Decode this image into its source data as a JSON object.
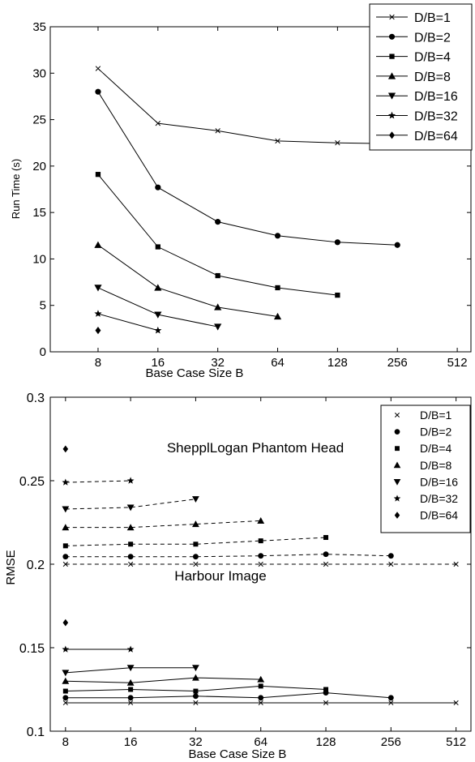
{
  "chart_data": [
    {
      "type": "line",
      "xscale": "log2",
      "xlabel": "Base Case Size B",
      "ylabel": "Run Time (s)",
      "xticks": [
        8,
        16,
        32,
        64,
        128,
        256,
        512
      ],
      "xtick_labels": [
        "8",
        "16",
        "32",
        "64",
        "128",
        "256",
        "512"
      ],
      "yticks": [
        0,
        5,
        10,
        15,
        20,
        25,
        30,
        35
      ],
      "ytick_labels": [
        "0",
        "5",
        "10",
        "15",
        "20",
        "25",
        "30",
        "35"
      ],
      "ylim": [
        0,
        35
      ],
      "xlim": [
        4.6,
        600
      ],
      "legend_position": "top-right",
      "series": [
        {
          "name": "D/B=1",
          "marker": "x",
          "x": [
            8,
            16,
            32,
            64,
            128,
            256,
            512
          ],
          "y": [
            30.5,
            24.6,
            23.8,
            22.7,
            22.5,
            22.4,
            22.3
          ]
        },
        {
          "name": "D/B=2",
          "marker": "circle",
          "x": [
            8,
            16,
            32,
            64,
            128,
            256
          ],
          "y": [
            28.0,
            17.7,
            14.0,
            12.5,
            11.8,
            11.5
          ]
        },
        {
          "name": "D/B=4",
          "marker": "square",
          "x": [
            8,
            16,
            32,
            64,
            128
          ],
          "y": [
            19.1,
            11.3,
            8.2,
            6.9,
            6.1
          ]
        },
        {
          "name": "D/B=8",
          "marker": "triangle-up",
          "x": [
            8,
            16,
            32,
            64
          ],
          "y": [
            11.5,
            6.9,
            4.8,
            3.8
          ]
        },
        {
          "name": "D/B=16",
          "marker": "triangle-down",
          "x": [
            8,
            16,
            32
          ],
          "y": [
            6.9,
            4.0,
            2.7
          ]
        },
        {
          "name": "D/B=32",
          "marker": "star",
          "x": [
            8,
            16
          ],
          "y": [
            4.1,
            2.3
          ]
        },
        {
          "name": "D/B=64",
          "marker": "diamond",
          "x": [
            8
          ],
          "y": [
            2.3
          ]
        }
      ]
    },
    {
      "type": "line",
      "xscale": "log2",
      "xlabel": "Base Case Size B",
      "ylabel": "RMSE",
      "xticks": [
        8,
        16,
        32,
        64,
        128,
        256,
        512
      ],
      "xtick_labels": [
        "8",
        "16",
        "32",
        "64",
        "128",
        "256",
        "512"
      ],
      "yticks": [
        0.1,
        0.15,
        0.2,
        0.25,
        0.3
      ],
      "ytick_labels": [
        "0.1",
        "0.15",
        "0.2",
        "0.25",
        "0.3"
      ],
      "ylim": [
        0.1,
        0.3
      ],
      "xlim": [
        6.8,
        600
      ],
      "legend_position": "top-right",
      "legend": [
        "D/B=1",
        "D/B=2",
        "D/B=4",
        "D/B=8",
        "D/B=16",
        "D/B=32",
        "D/B=64"
      ],
      "annotations": [
        {
          "text": "ShepplLogan Phantom Head",
          "x": 21,
          "y": 0.238
        },
        {
          "text": "Harbour Image",
          "x": 21,
          "y": 0.153
        }
      ],
      "groups": [
        {
          "label": "ShepplLogan Phantom Head",
          "line_style": "dashed",
          "series": [
            {
              "name": "D/B=1",
              "marker": "x",
              "x": [
                8,
                16,
                32,
                64,
                128,
                256,
                512
              ],
              "y": [
                0.2,
                0.2,
                0.2,
                0.2,
                0.2,
                0.2,
                0.2
              ]
            },
            {
              "name": "D/B=2",
              "marker": "circle",
              "x": [
                8,
                16,
                32,
                64,
                128,
                256
              ],
              "y": [
                0.2045,
                0.2045,
                0.2045,
                0.205,
                0.206,
                0.205
              ]
            },
            {
              "name": "D/B=4",
              "marker": "square",
              "x": [
                8,
                16,
                32,
                64,
                128
              ],
              "y": [
                0.211,
                0.212,
                0.212,
                0.214,
                0.216
              ]
            },
            {
              "name": "D/B=8",
              "marker": "triangle-up",
              "x": [
                8,
                16,
                32,
                64
              ],
              "y": [
                0.222,
                0.222,
                0.224,
                0.226
              ]
            },
            {
              "name": "D/B=16",
              "marker": "triangle-down",
              "x": [
                8,
                16,
                32
              ],
              "y": [
                0.233,
                0.234,
                0.239
              ]
            },
            {
              "name": "D/B=32",
              "marker": "star",
              "x": [
                8,
                16
              ],
              "y": [
                0.249,
                0.25
              ]
            },
            {
              "name": "D/B=64",
              "marker": "diamond",
              "x": [
                8
              ],
              "y": [
                0.269
              ]
            }
          ]
        },
        {
          "label": "Harbour Image",
          "line_style": "solid",
          "series": [
            {
              "name": "D/B=1",
              "marker": "x",
              "x": [
                8,
                16,
                32,
                64,
                128,
                256,
                512
              ],
              "y": [
                0.117,
                0.117,
                0.117,
                0.117,
                0.117,
                0.117,
                0.117
              ]
            },
            {
              "name": "D/B=2",
              "marker": "circle",
              "x": [
                8,
                16,
                32,
                64,
                128,
                256
              ],
              "y": [
                0.12,
                0.12,
                0.121,
                0.12,
                0.123,
                0.12
              ]
            },
            {
              "name": "D/B=4",
              "marker": "square",
              "x": [
                8,
                16,
                32,
                64,
                128
              ],
              "y": [
                0.124,
                0.125,
                0.124,
                0.127,
                0.125
              ]
            },
            {
              "name": "D/B=8",
              "marker": "triangle-up",
              "x": [
                8,
                16,
                32,
                64
              ],
              "y": [
                0.13,
                0.129,
                0.132,
                0.131
              ]
            },
            {
              "name": "D/B=16",
              "marker": "triangle-down",
              "x": [
                8,
                16,
                32
              ],
              "y": [
                0.135,
                0.138,
                0.138
              ]
            },
            {
              "name": "D/B=32",
              "marker": "star",
              "x": [
                8,
                16
              ],
              "y": [
                0.149,
                0.149
              ]
            },
            {
              "name": "D/B=64",
              "marker": "diamond",
              "x": [
                8
              ],
              "y": [
                0.165
              ]
            }
          ]
        }
      ]
    }
  ]
}
